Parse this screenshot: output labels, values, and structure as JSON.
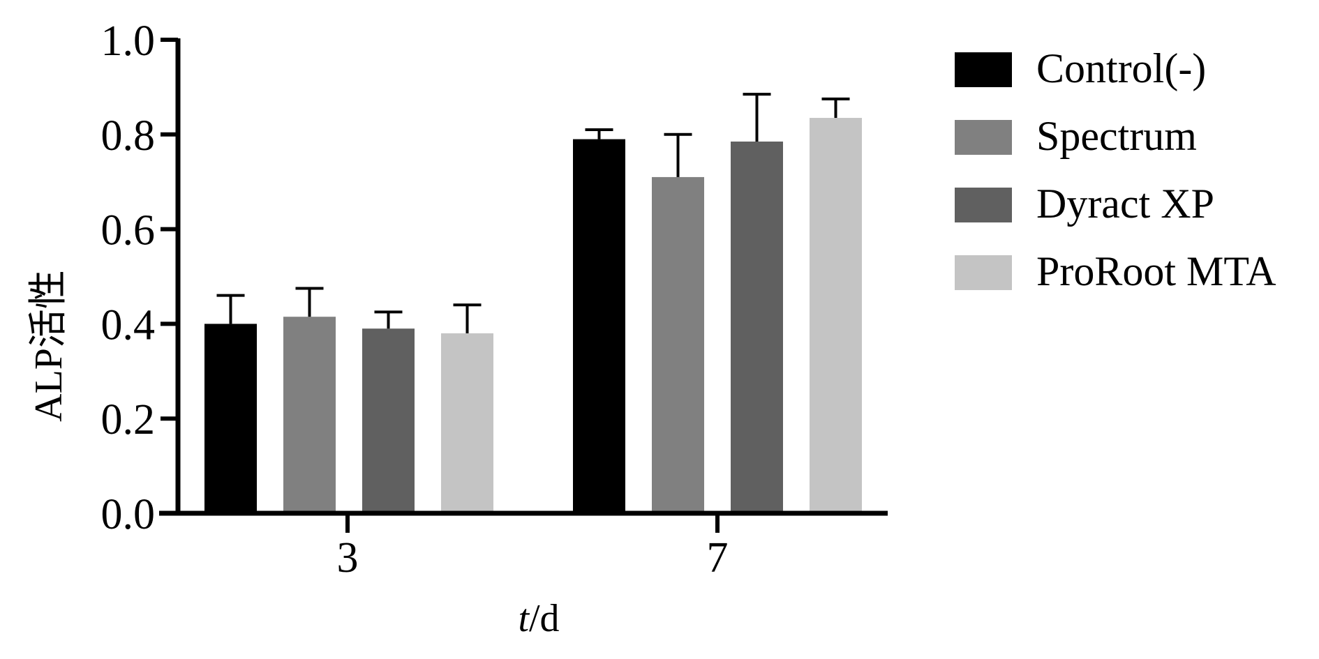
{
  "chart_data": {
    "type": "bar",
    "title": "",
    "xlabel": {
      "italic_part": "t",
      "rest": "/d"
    },
    "ylabel": "ALP活性",
    "categories": [
      "3",
      "7"
    ],
    "ylim": [
      0,
      1.0
    ],
    "yticks": [
      "0.0",
      "0.2",
      "0.4",
      "0.6",
      "0.8",
      "1.0"
    ],
    "grid": false,
    "legend_position": "right",
    "error_bars": true,
    "series": [
      {
        "name": "Control(-)",
        "color": "#000000",
        "values": [
          0.4,
          0.79
        ],
        "errors": [
          0.06,
          0.02
        ]
      },
      {
        "name": "Spectrum",
        "color": "#808080",
        "values": [
          0.415,
          0.71
        ],
        "errors": [
          0.06,
          0.09
        ]
      },
      {
        "name": "Dyract XP",
        "color": "#606060",
        "values": [
          0.39,
          0.785
        ],
        "errors": [
          0.035,
          0.1
        ]
      },
      {
        "name": "ProRoot MTA",
        "color": "#c4c4c4",
        "values": [
          0.38,
          0.835
        ],
        "errors": [
          0.06,
          0.04
        ]
      }
    ]
  }
}
